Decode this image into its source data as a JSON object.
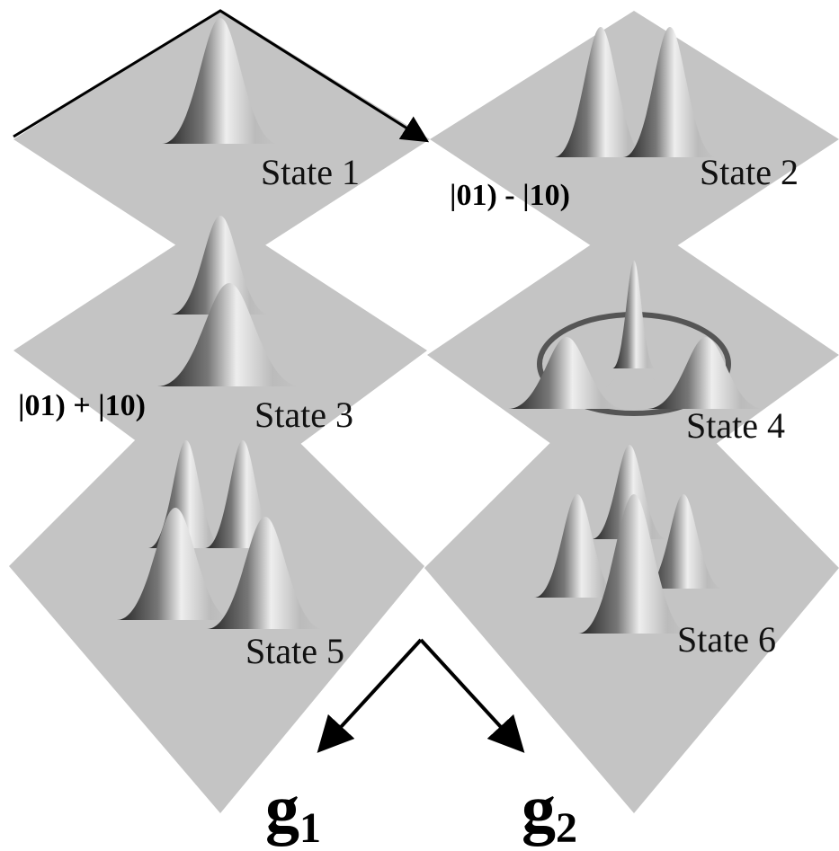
{
  "panels": [
    {
      "label": "State 1"
    },
    {
      "label": "State 2",
      "annotation": "|01) - |10)"
    },
    {
      "label": "State 3",
      "annotation": "|01) + |10)"
    },
    {
      "label": "State 4"
    },
    {
      "label": "State 5"
    },
    {
      "label": "State 6"
    }
  ],
  "axes": [
    {
      "symbol": "g",
      "subscript": "1"
    },
    {
      "symbol": "g",
      "subscript": "2"
    }
  ]
}
